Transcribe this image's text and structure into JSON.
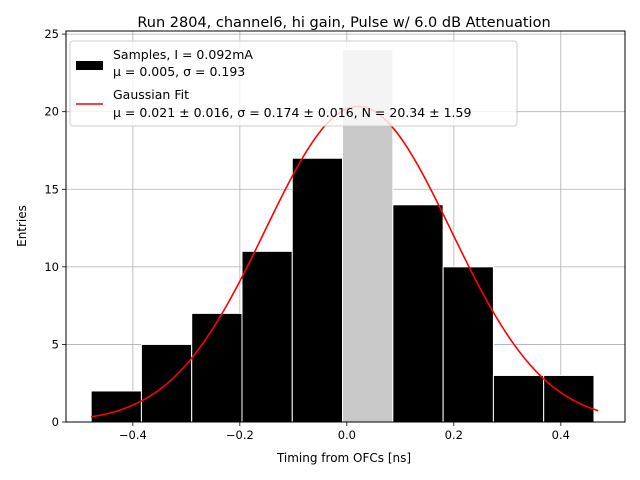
{
  "chart_data": {
    "type": "bar",
    "title": "Run 2804, channel6, hi gain, Pulse w/ 6.0 dB Attenuation",
    "xlabel": "Timing from OFCs [ns]",
    "ylabel": "Entries",
    "xlim": [
      -0.525,
      0.52
    ],
    "ylim": [
      0,
      25.2
    ],
    "xticks": [
      -0.4,
      -0.2,
      0.0,
      0.2,
      0.4
    ],
    "xtick_labels": [
      "−0.4",
      "−0.2",
      "0.0",
      "0.2",
      "0.4"
    ],
    "yticks": [
      0,
      5,
      10,
      15,
      20,
      25
    ],
    "ytick_labels": [
      "0",
      "5",
      "10",
      "15",
      "20",
      "25"
    ],
    "grid": true,
    "legend_position": "top-left",
    "histogram": {
      "name": "Samples, I = 0.092mA",
      "stats_label": "μ = 0.005, σ = 0.193",
      "bin_edges": [
        -0.478,
        -0.384,
        -0.29,
        -0.196,
        -0.102,
        -0.008,
        0.086,
        0.18,
        0.274,
        0.368,
        0.462
      ],
      "counts": [
        2,
        5,
        7,
        11,
        17,
        24,
        14,
        10,
        3,
        3
      ],
      "color": "#000000",
      "highlight_color": "#c8c8c8",
      "highlight_bin": 5
    },
    "fit": {
      "name": "Gaussian Fit",
      "params_label": "μ = 0.021 ± 0.016, σ = 0.174 ± 0.016, N = 20.34 ± 1.59",
      "mu": 0.021,
      "sigma": 0.174,
      "N": 20.34,
      "x_range": [
        -0.478,
        0.47
      ],
      "color": "#ff0000"
    }
  }
}
